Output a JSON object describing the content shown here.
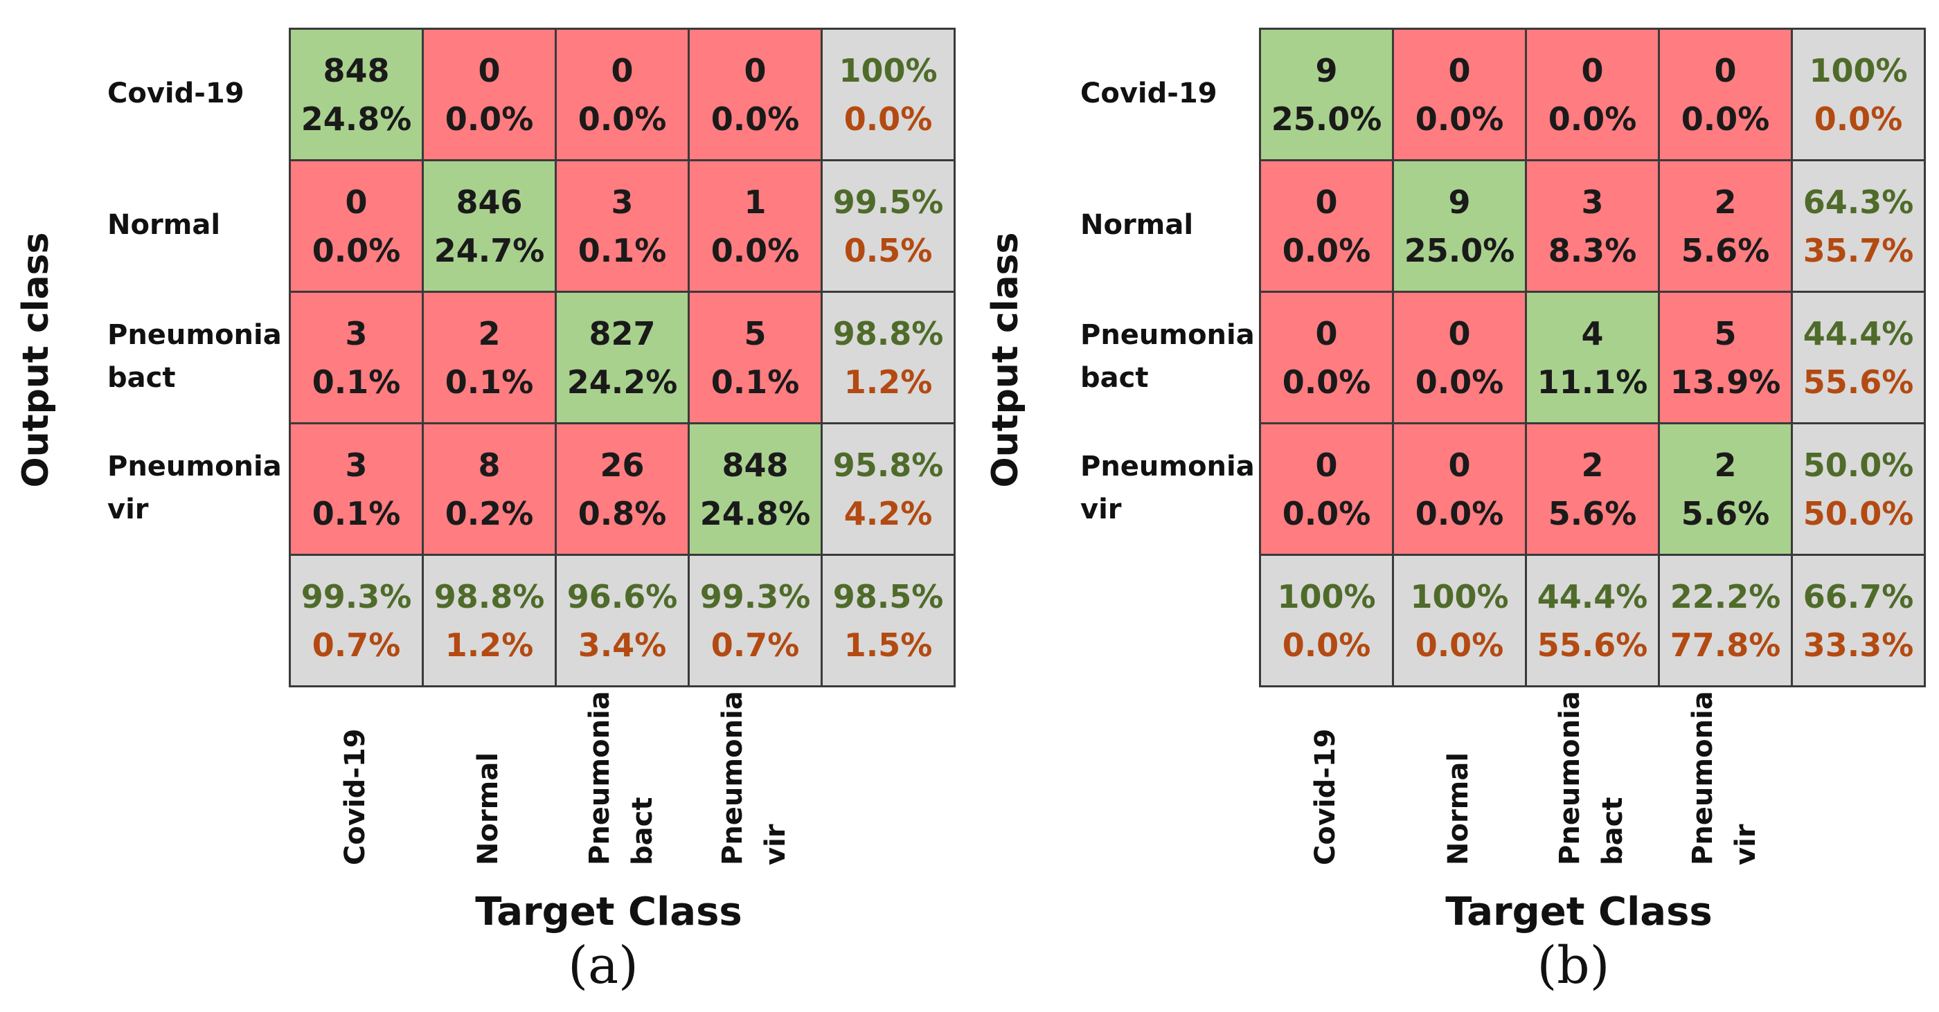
{
  "chart_data": [
    {
      "type": "heatmap",
      "caption": "(a)",
      "ylabel": "Output class",
      "xlabel": "Target Class",
      "row_labels": [
        [
          "Covid-19"
        ],
        [
          "Normal"
        ],
        [
          "Pneumonia",
          "bact"
        ],
        [
          "Pneumonia",
          "vir"
        ]
      ],
      "col_labels": [
        [
          "Covid-19"
        ],
        [
          "Normal"
        ],
        [
          "Pneumonia",
          "bact"
        ],
        [
          "Pneumonia",
          "vir"
        ]
      ],
      "counts": [
        [
          848,
          0,
          0,
          0
        ],
        [
          0,
          846,
          3,
          1
        ],
        [
          3,
          2,
          827,
          5
        ],
        [
          3,
          8,
          26,
          848
        ]
      ],
      "percents": [
        [
          "24.8%",
          "0.0%",
          "0.0%",
          "0.0%"
        ],
        [
          "0.0%",
          "24.7%",
          "0.1%",
          "0.0%"
        ],
        [
          "0.1%",
          "0.1%",
          "24.2%",
          "0.1%"
        ],
        [
          "0.1%",
          "0.2%",
          "0.8%",
          "24.8%"
        ]
      ],
      "row_summary": [
        [
          "100%",
          "0.0%"
        ],
        [
          "99.5%",
          "0.5%"
        ],
        [
          "98.8%",
          "1.2%"
        ],
        [
          "95.8%",
          "4.2%"
        ]
      ],
      "col_summary": [
        [
          "99.3%",
          "0.7%"
        ],
        [
          "98.8%",
          "1.2%"
        ],
        [
          "96.6%",
          "3.4%"
        ],
        [
          "99.3%",
          "0.7%"
        ]
      ],
      "overall": [
        "98.5%",
        "1.5%"
      ]
    },
    {
      "type": "heatmap",
      "caption": "(b)",
      "ylabel": "Output class",
      "xlabel": "Target Class",
      "row_labels": [
        [
          "Covid-19"
        ],
        [
          "Normal"
        ],
        [
          "Pneumonia",
          "bact"
        ],
        [
          "Pneumonia",
          "vir"
        ]
      ],
      "col_labels": [
        [
          "Covid-19"
        ],
        [
          "Normal"
        ],
        [
          "Pneumonia",
          "bact"
        ],
        [
          "Pneumonia",
          "vir"
        ]
      ],
      "counts": [
        [
          9,
          0,
          0,
          0
        ],
        [
          0,
          9,
          3,
          2
        ],
        [
          0,
          0,
          4,
          5
        ],
        [
          0,
          0,
          2,
          2
        ]
      ],
      "percents": [
        [
          "25.0%",
          "0.0%",
          "0.0%",
          "0.0%"
        ],
        [
          "0.0%",
          "25.0%",
          "8.3%",
          "5.6%"
        ],
        [
          "0.0%",
          "0.0%",
          "11.1%",
          "13.9%"
        ],
        [
          "0.0%",
          "0.0%",
          "5.6%",
          "5.6%"
        ]
      ],
      "row_summary": [
        [
          "100%",
          "0.0%"
        ],
        [
          "64.3%",
          "35.7%"
        ],
        [
          "44.4%",
          "55.6%"
        ],
        [
          "50.0%",
          "50.0%"
        ]
      ],
      "col_summary": [
        [
          "100%",
          "0.0%"
        ],
        [
          "100%",
          "0.0%"
        ],
        [
          "44.4%",
          "55.6%"
        ],
        [
          "22.2%",
          "77.8%"
        ]
      ],
      "overall": [
        "66.7%",
        "33.3%"
      ]
    }
  ],
  "colors": {
    "correct": "#a9d18e",
    "wrong": "#ff7c80",
    "summary": "#d9d9d9",
    "summary_good_text": "#4f6b2a",
    "summary_bad_text": "#b34a12",
    "grid_line": "#3a3a3a"
  }
}
